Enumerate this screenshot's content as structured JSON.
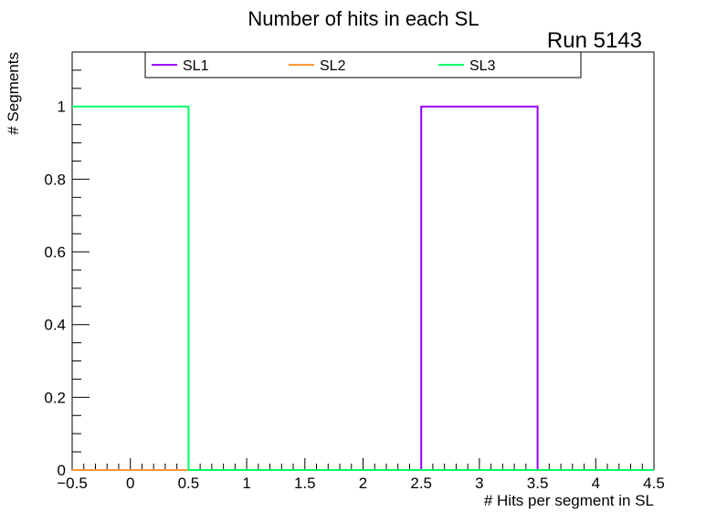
{
  "chart_data": {
    "type": "histogram",
    "title": "Number of hits in each SL",
    "annotation": "Run 5143",
    "xlabel": "# Hits per segment in SL",
    "ylabel": "# Segments",
    "xlim": [
      -0.5,
      4.5
    ],
    "ylim": [
      0,
      1.15
    ],
    "x_ticks": [
      "-0.5",
      "0",
      "0.5",
      "1",
      "1.5",
      "2",
      "2.5",
      "3",
      "3.5",
      "4",
      "4.5"
    ],
    "y_ticks": [
      "0",
      "0.2",
      "0.4",
      "0.6",
      "0.8",
      "1"
    ],
    "bin_edges": [
      -0.5,
      0.5,
      1.5,
      2.5,
      3.5,
      4.5
    ],
    "series": [
      {
        "name": "SL1",
        "color": "#9900ff",
        "values": [
          0,
          0,
          0,
          1,
          0
        ]
      },
      {
        "name": "SL2",
        "color": "#ff9933",
        "values": [
          0,
          0,
          0,
          0,
          0
        ]
      },
      {
        "name": "SL3",
        "color": "#00ff66",
        "values": [
          1,
          0,
          0,
          0,
          0
        ]
      }
    ],
    "legend": {
      "placement": "top",
      "entries": [
        "SL1",
        "SL2",
        "SL3"
      ]
    },
    "grid": false
  }
}
